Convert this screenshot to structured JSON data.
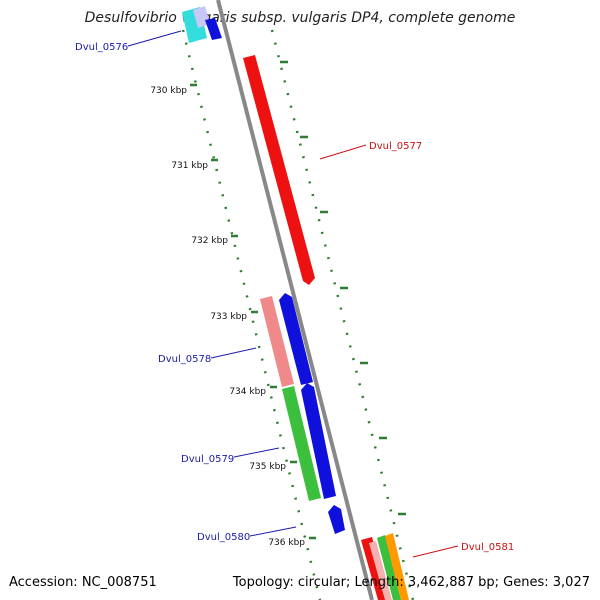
{
  "title": "Desulfovibrio vulgaris subsp. vulgaris DP4, complete genome",
  "footer": {
    "accession": "Accession: NC_008751",
    "summary": "Topology: circular; Length: 3,462,887 bp; Genes: 3,027"
  },
  "ticks": [
    "730 kbp",
    "731 kbp",
    "732 kbp",
    "733 kbp",
    "734 kbp",
    "735 kbp",
    "736 kbp"
  ],
  "gene_labels": [
    {
      "text": "Dvul_0576",
      "color": "#1a1aaa"
    },
    {
      "text": "Dvul_0577",
      "color": "#cc1111"
    },
    {
      "text": "Dvul_0578",
      "color": "#1a1aaa"
    },
    {
      "text": "Dvul_0579",
      "color": "#1a1aaa"
    },
    {
      "text": "Dvul_0580",
      "color": "#1a1aaa"
    },
    {
      "text": "Dvul_0581",
      "color": "#cc1111"
    }
  ],
  "colors": {
    "backbone": "#888888",
    "tick_dots": "#2e7d32",
    "cds_forward": "#ee1111",
    "cds_reverse": "#1010dd",
    "cog_pink": "#f08a8a",
    "cog_green": "#3cbf3c",
    "cog_cyan": "#33dddd",
    "cog_orange": "#ff9900",
    "cog_lilac": "#c8c8f8"
  }
}
